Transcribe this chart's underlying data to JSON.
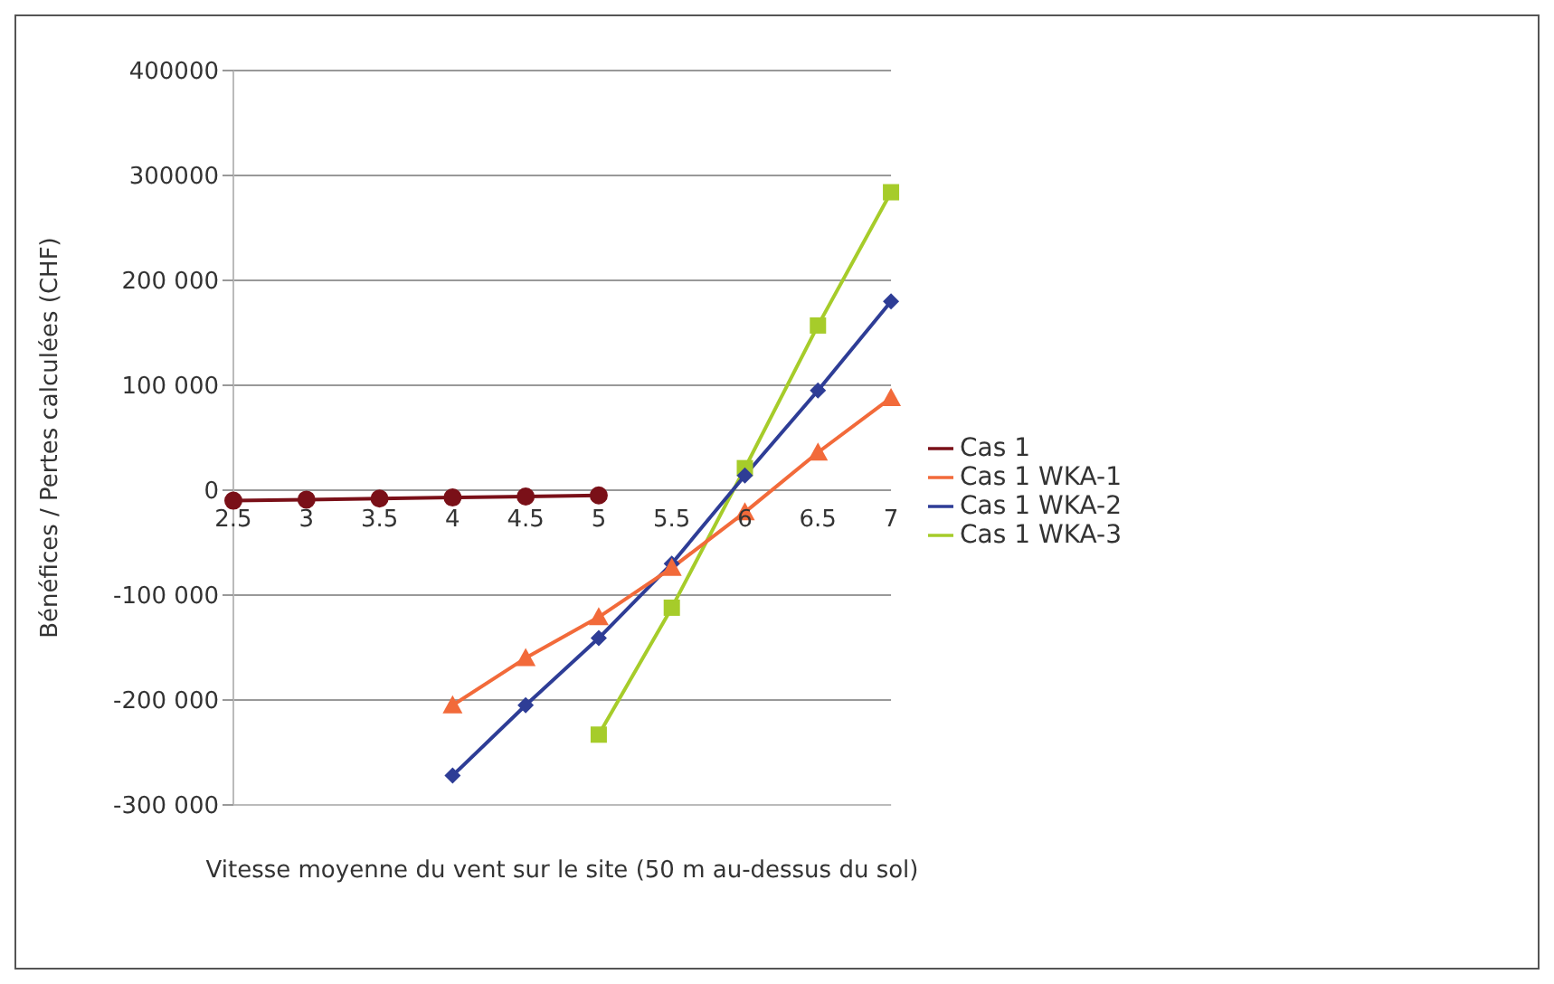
{
  "chart_data": {
    "type": "line",
    "xlabel": "Vitesse moyenne du vent sur le site (50 m au-dessus du sol)",
    "ylabel": "Bénéfices / Pertes calculées (CHF)",
    "categories": [
      "2.5",
      "3",
      "3.5",
      "4",
      "4.5",
      "5",
      "5.5",
      "6",
      "6.5",
      "7"
    ],
    "series": [
      {
        "name": "Cas 1",
        "color": "#7a1018",
        "marker": "circle",
        "values": [
          -10000,
          -9000,
          -8000,
          -7000,
          -6000,
          -5000,
          null,
          null,
          null,
          null
        ]
      },
      {
        "name": "Cas 1 WKA-1",
        "color": "#f26a3a",
        "marker": "triangle",
        "values": [
          null,
          null,
          null,
          -205000,
          -160000,
          -121000,
          -74000,
          -21000,
          36000,
          88000
        ]
      },
      {
        "name": "Cas 1 WKA-2",
        "color": "#2e3d96",
        "marker": "diamond",
        "values": [
          null,
          null,
          null,
          -272000,
          -205000,
          -141000,
          -70000,
          14000,
          95000,
          180000
        ]
      },
      {
        "name": "Cas 1 WKA-3",
        "color": "#a6cc2a",
        "marker": "square",
        "values": [
          null,
          null,
          null,
          null,
          null,
          -233000,
          -112000,
          21000,
          157000,
          284000
        ]
      }
    ],
    "ylim": [
      -300000,
      400000
    ],
    "yticks": [
      {
        "value": -300000,
        "label": "-300 000"
      },
      {
        "value": -200000,
        "label": "-200 000"
      },
      {
        "value": -100000,
        "label": "-100 000"
      },
      0,
      {
        "value": 100000,
        "label": "100 000"
      },
      {
        "value": 200000,
        "label": "200 000"
      },
      300000,
      400000
    ],
    "grid": "y",
    "legend": "right",
    "line_style": "solid"
  }
}
